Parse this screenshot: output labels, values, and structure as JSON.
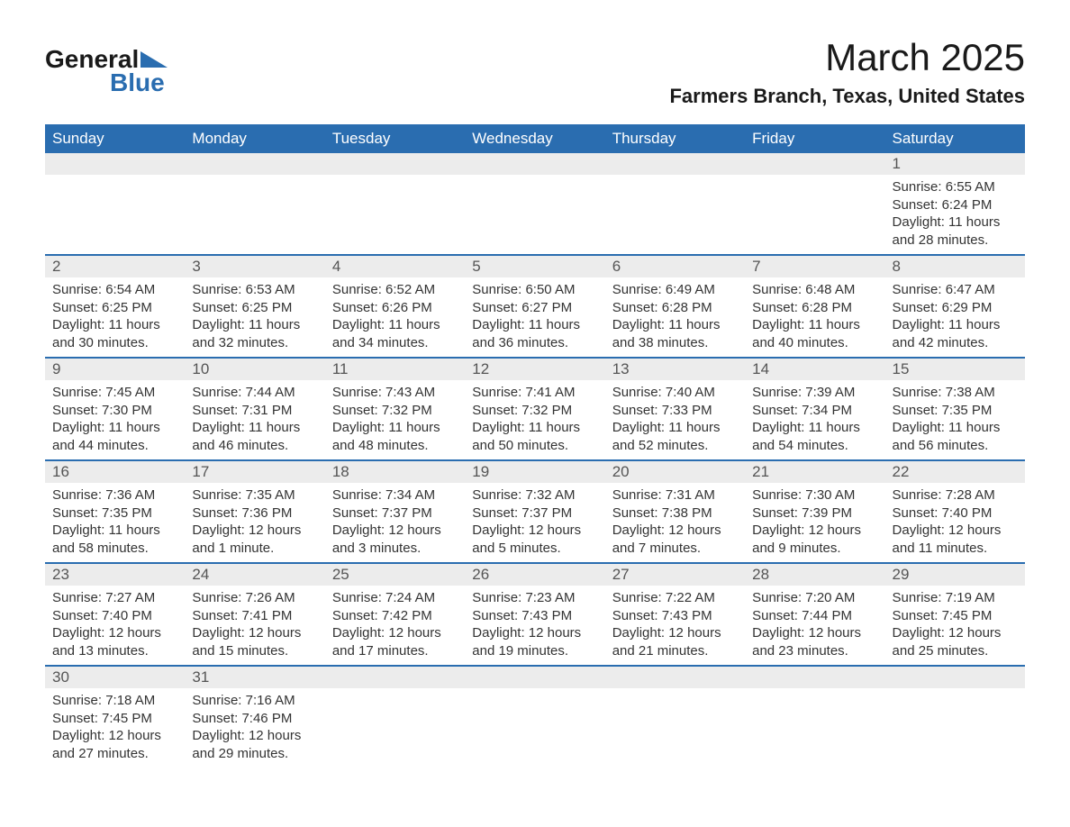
{
  "logo": {
    "text1": "General",
    "text2": "Blue",
    "icon_color": "#2a6db0"
  },
  "title": "March 2025",
  "location": "Farmers Branch, Texas, United States",
  "colors": {
    "header_bg": "#2a6db0",
    "header_text": "#ffffff",
    "daynum_bg": "#ececec",
    "row_divider": "#2a6db0",
    "body_text": "#333333",
    "page_bg": "#ffffff"
  },
  "typography": {
    "month_title_size_pt": 32,
    "location_size_pt": 17,
    "header_size_pt": 13,
    "daynum_size_pt": 13,
    "body_size_pt": 11,
    "font_family": "Arial"
  },
  "day_headers": [
    "Sunday",
    "Monday",
    "Tuesday",
    "Wednesday",
    "Thursday",
    "Friday",
    "Saturday"
  ],
  "weeks": [
    [
      null,
      null,
      null,
      null,
      null,
      null,
      {
        "n": "1",
        "sr": "Sunrise: 6:55 AM",
        "ss": "Sunset: 6:24 PM",
        "d1": "Daylight: 11 hours",
        "d2": "and 28 minutes."
      }
    ],
    [
      {
        "n": "2",
        "sr": "Sunrise: 6:54 AM",
        "ss": "Sunset: 6:25 PM",
        "d1": "Daylight: 11 hours",
        "d2": "and 30 minutes."
      },
      {
        "n": "3",
        "sr": "Sunrise: 6:53 AM",
        "ss": "Sunset: 6:25 PM",
        "d1": "Daylight: 11 hours",
        "d2": "and 32 minutes."
      },
      {
        "n": "4",
        "sr": "Sunrise: 6:52 AM",
        "ss": "Sunset: 6:26 PM",
        "d1": "Daylight: 11 hours",
        "d2": "and 34 minutes."
      },
      {
        "n": "5",
        "sr": "Sunrise: 6:50 AM",
        "ss": "Sunset: 6:27 PM",
        "d1": "Daylight: 11 hours",
        "d2": "and 36 minutes."
      },
      {
        "n": "6",
        "sr": "Sunrise: 6:49 AM",
        "ss": "Sunset: 6:28 PM",
        "d1": "Daylight: 11 hours",
        "d2": "and 38 minutes."
      },
      {
        "n": "7",
        "sr": "Sunrise: 6:48 AM",
        "ss": "Sunset: 6:28 PM",
        "d1": "Daylight: 11 hours",
        "d2": "and 40 minutes."
      },
      {
        "n": "8",
        "sr": "Sunrise: 6:47 AM",
        "ss": "Sunset: 6:29 PM",
        "d1": "Daylight: 11 hours",
        "d2": "and 42 minutes."
      }
    ],
    [
      {
        "n": "9",
        "sr": "Sunrise: 7:45 AM",
        "ss": "Sunset: 7:30 PM",
        "d1": "Daylight: 11 hours",
        "d2": "and 44 minutes."
      },
      {
        "n": "10",
        "sr": "Sunrise: 7:44 AM",
        "ss": "Sunset: 7:31 PM",
        "d1": "Daylight: 11 hours",
        "d2": "and 46 minutes."
      },
      {
        "n": "11",
        "sr": "Sunrise: 7:43 AM",
        "ss": "Sunset: 7:32 PM",
        "d1": "Daylight: 11 hours",
        "d2": "and 48 minutes."
      },
      {
        "n": "12",
        "sr": "Sunrise: 7:41 AM",
        "ss": "Sunset: 7:32 PM",
        "d1": "Daylight: 11 hours",
        "d2": "and 50 minutes."
      },
      {
        "n": "13",
        "sr": "Sunrise: 7:40 AM",
        "ss": "Sunset: 7:33 PM",
        "d1": "Daylight: 11 hours",
        "d2": "and 52 minutes."
      },
      {
        "n": "14",
        "sr": "Sunrise: 7:39 AM",
        "ss": "Sunset: 7:34 PM",
        "d1": "Daylight: 11 hours",
        "d2": "and 54 minutes."
      },
      {
        "n": "15",
        "sr": "Sunrise: 7:38 AM",
        "ss": "Sunset: 7:35 PM",
        "d1": "Daylight: 11 hours",
        "d2": "and 56 minutes."
      }
    ],
    [
      {
        "n": "16",
        "sr": "Sunrise: 7:36 AM",
        "ss": "Sunset: 7:35 PM",
        "d1": "Daylight: 11 hours",
        "d2": "and 58 minutes."
      },
      {
        "n": "17",
        "sr": "Sunrise: 7:35 AM",
        "ss": "Sunset: 7:36 PM",
        "d1": "Daylight: 12 hours",
        "d2": "and 1 minute."
      },
      {
        "n": "18",
        "sr": "Sunrise: 7:34 AM",
        "ss": "Sunset: 7:37 PM",
        "d1": "Daylight: 12 hours",
        "d2": "and 3 minutes."
      },
      {
        "n": "19",
        "sr": "Sunrise: 7:32 AM",
        "ss": "Sunset: 7:37 PM",
        "d1": "Daylight: 12 hours",
        "d2": "and 5 minutes."
      },
      {
        "n": "20",
        "sr": "Sunrise: 7:31 AM",
        "ss": "Sunset: 7:38 PM",
        "d1": "Daylight: 12 hours",
        "d2": "and 7 minutes."
      },
      {
        "n": "21",
        "sr": "Sunrise: 7:30 AM",
        "ss": "Sunset: 7:39 PM",
        "d1": "Daylight: 12 hours",
        "d2": "and 9 minutes."
      },
      {
        "n": "22",
        "sr": "Sunrise: 7:28 AM",
        "ss": "Sunset: 7:40 PM",
        "d1": "Daylight: 12 hours",
        "d2": "and 11 minutes."
      }
    ],
    [
      {
        "n": "23",
        "sr": "Sunrise: 7:27 AM",
        "ss": "Sunset: 7:40 PM",
        "d1": "Daylight: 12 hours",
        "d2": "and 13 minutes."
      },
      {
        "n": "24",
        "sr": "Sunrise: 7:26 AM",
        "ss": "Sunset: 7:41 PM",
        "d1": "Daylight: 12 hours",
        "d2": "and 15 minutes."
      },
      {
        "n": "25",
        "sr": "Sunrise: 7:24 AM",
        "ss": "Sunset: 7:42 PM",
        "d1": "Daylight: 12 hours",
        "d2": "and 17 minutes."
      },
      {
        "n": "26",
        "sr": "Sunrise: 7:23 AM",
        "ss": "Sunset: 7:43 PM",
        "d1": "Daylight: 12 hours",
        "d2": "and 19 minutes."
      },
      {
        "n": "27",
        "sr": "Sunrise: 7:22 AM",
        "ss": "Sunset: 7:43 PM",
        "d1": "Daylight: 12 hours",
        "d2": "and 21 minutes."
      },
      {
        "n": "28",
        "sr": "Sunrise: 7:20 AM",
        "ss": "Sunset: 7:44 PM",
        "d1": "Daylight: 12 hours",
        "d2": "and 23 minutes."
      },
      {
        "n": "29",
        "sr": "Sunrise: 7:19 AM",
        "ss": "Sunset: 7:45 PM",
        "d1": "Daylight: 12 hours",
        "d2": "and 25 minutes."
      }
    ],
    [
      {
        "n": "30",
        "sr": "Sunrise: 7:18 AM",
        "ss": "Sunset: 7:45 PM",
        "d1": "Daylight: 12 hours",
        "d2": "and 27 minutes."
      },
      {
        "n": "31",
        "sr": "Sunrise: 7:16 AM",
        "ss": "Sunset: 7:46 PM",
        "d1": "Daylight: 12 hours",
        "d2": "and 29 minutes."
      },
      null,
      null,
      null,
      null,
      null
    ]
  ]
}
